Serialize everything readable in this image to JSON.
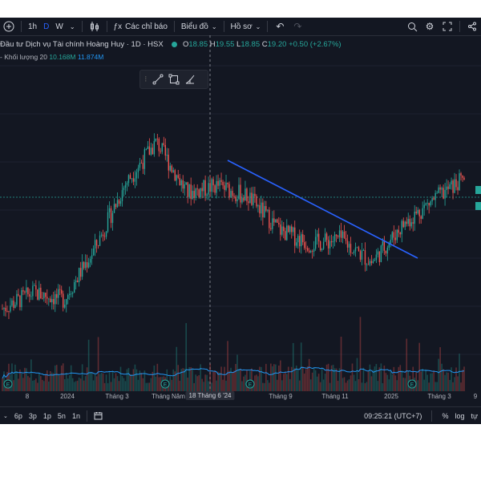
{
  "toolbar": {
    "intervals": [
      "1h",
      "D",
      "W"
    ],
    "active_interval": "D",
    "indicators_label": "Các chỉ báo",
    "chart_type_label": "Biểu đồ",
    "profile_label": "Hồ sơ"
  },
  "legend": {
    "symbol_title": "Đầu tư Dịch vụ Tài chính Hoàng Huy · 1D · HSX",
    "open_label": "O",
    "open": "18.85",
    "high_label": "H",
    "high": "19.55",
    "low_label": "L",
    "low": "18.85",
    "close_label": "C",
    "close": "19.20",
    "change": "+0.50 (+2.67%)",
    "volume_label": "- Khối lượng 20",
    "volume_value": "10.168M",
    "volume_ma": "11.874M"
  },
  "xaxis": {
    "labels": [
      "8",
      "2024",
      "Tháng 3",
      "Tháng Năm",
      "Tháng 9",
      "Tháng 11",
      "2025",
      "Tháng 3",
      "9"
    ],
    "crosshair_label": "18 Tháng 6 '24"
  },
  "bottombar": {
    "ranges": [
      "6p",
      "3p",
      "1p",
      "5n",
      "1n"
    ],
    "clock": "09:25:21 (UTC+7)",
    "percent": "%",
    "log": "log",
    "auto": "tự"
  },
  "icons": {
    "add": "plus-circle-icon",
    "indicators": "indicators-icon",
    "undo": "undo-icon",
    "search": "search-icon",
    "settings": "gear-icon",
    "fullscreen": "fullscreen-icon",
    "share": "share-icon",
    "calendar": "calendar-range-icon",
    "earnings": "earnings-marker-icon"
  },
  "colors": {
    "background": "#131722",
    "up": "#26a69a",
    "down": "#ef5350",
    "trendline": "#2962ff",
    "volume_ma": "#2196f3",
    "accent": "#2962ff"
  },
  "chart_data": {
    "type": "candlestick",
    "symbol": "HSX",
    "interval": "1D",
    "ohlc_last": {
      "open": 18.85,
      "high": 19.55,
      "low": 18.85,
      "close": 19.2
    },
    "trend": [
      {
        "period": "Nov 2023",
        "close": 13.6
      },
      {
        "period": "Jan 2024",
        "close": 14.3
      },
      {
        "period": "Mar 2024",
        "close": 14.0
      },
      {
        "period": "Apr 2024",
        "close": 16.2
      },
      {
        "period": "May 2024",
        "close": 19.0
      },
      {
        "period": "Jun 2024",
        "close": 20.8
      },
      {
        "period": "Jul 2024",
        "close": 18.6
      },
      {
        "period": "Aug 2024",
        "close": 18.9
      },
      {
        "period": "Sep 2024",
        "close": 18.4
      },
      {
        "period": "Oct 2024",
        "close": 17.0
      },
      {
        "period": "Nov 2024",
        "close": 16.4
      },
      {
        "period": "Dec 2024",
        "close": 16.6
      },
      {
        "period": "Jan 2025",
        "close": 15.6
      },
      {
        "period": "Feb 2025",
        "close": 17.2
      },
      {
        "period": "Mar 2025",
        "close": 18.3
      },
      {
        "period": "Mar 2025 end",
        "close": 19.2
      }
    ],
    "volume": {
      "last": "10.168M",
      "ma20": "11.874M"
    }
  }
}
